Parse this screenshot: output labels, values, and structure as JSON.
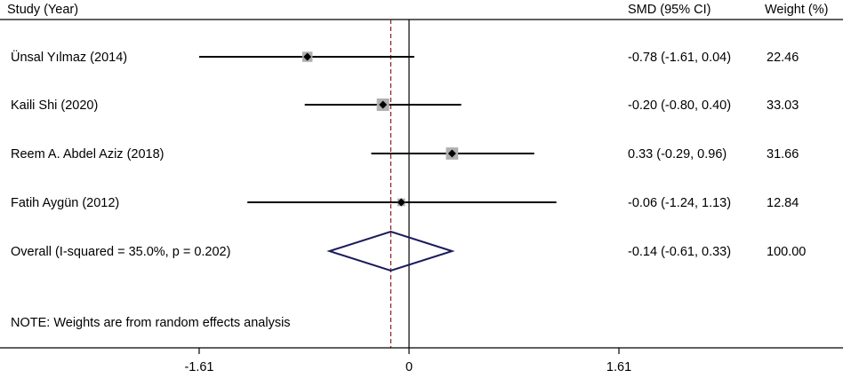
{
  "chart_data": {
    "type": "forest",
    "headers": {
      "study": "Study (Year)",
      "effect": "SMD (95% CI)",
      "weight": "Weight (%)"
    },
    "studies": [
      {
        "label": "Ünsal Yılmaz (2014)",
        "smd": -0.78,
        "lower": -1.61,
        "upper": 0.04,
        "ci_text": "-0.78 (-1.61, 0.04)",
        "weight": 22.46,
        "weight_text": "22.46"
      },
      {
        "label": "Kaili Shi  (2020)",
        "smd": -0.2,
        "lower": -0.8,
        "upper": 0.4,
        "ci_text": "-0.20 (-0.80, 0.40)",
        "weight": 33.03,
        "weight_text": "33.03"
      },
      {
        "label": "Reem A. Abdel Aziz (2018)",
        "smd": 0.33,
        "lower": -0.29,
        "upper": 0.96,
        "ci_text": "0.33 (-0.29, 0.96)",
        "weight": 31.66,
        "weight_text": "31.66"
      },
      {
        "label": "Fatih Aygün (2012)",
        "smd": -0.06,
        "lower": -1.24,
        "upper": 1.13,
        "ci_text": "-0.06 (-1.24, 1.13)",
        "weight": 12.84,
        "weight_text": "12.84"
      }
    ],
    "overall": {
      "label": "Overall  (I-squared = 35.0%, p = 0.202)",
      "smd": -0.14,
      "lower": -0.61,
      "upper": 0.33,
      "ci_text": "-0.14 (-0.61, 0.33)",
      "weight_text": "100.00"
    },
    "note": "NOTE: Weights are from random effects analysis",
    "x_ticks": [
      {
        "value": -1.61,
        "label": "-1.61"
      },
      {
        "value": 0,
        "label": "0"
      },
      {
        "value": 1.61,
        "label": "1.61"
      }
    ],
    "null_line": 0,
    "overall_line": -0.14,
    "colors": {
      "diamond": "#1a1a5e",
      "overall_line": "#8b1a1a",
      "box": "#b0b0b0"
    }
  }
}
